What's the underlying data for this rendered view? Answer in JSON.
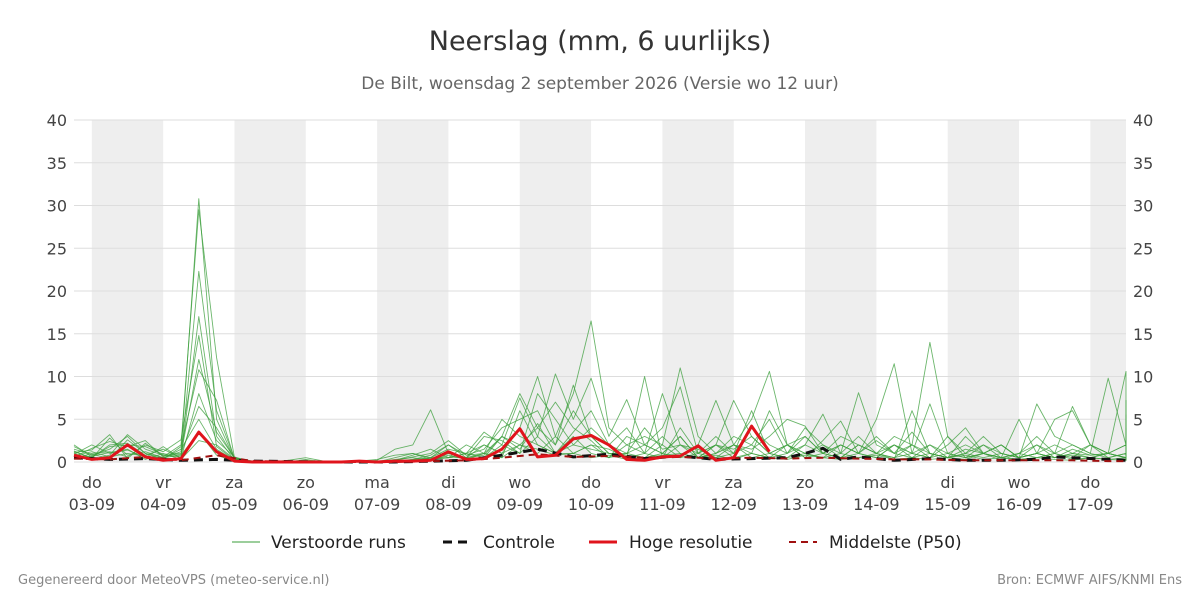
{
  "colors": {
    "ensemble": "#3a9e3a",
    "control": "#111111",
    "hires": "#e0141c",
    "median": "#a01010",
    "weekend_band": "#eeeeee",
    "grid": "#dddddd"
  },
  "chart_data": {
    "type": "line",
    "title": "Neerslag (mm, 6 uurlijks)",
    "subtitle": "De Bilt, woensdag  2 september 2026 (Versie wo 12 uur)",
    "unit": "mm",
    "xlim": [
      "2026-09-02T18:00",
      "2026-09-17T12:00"
    ],
    "ylim": [
      0,
      40
    ],
    "yticks": [
      0,
      5,
      10,
      15,
      20,
      25,
      30,
      35,
      40
    ],
    "y_axis_left_and_right": true,
    "grid": "horizontal",
    "shaded_days": [
      "2026-09-03",
      "2026-09-05",
      "2026-09-07",
      "2026-09-09",
      "2026-09-11",
      "2026-09-13",
      "2026-09-15",
      "2026-09-17"
    ],
    "xticks": [
      {
        "date": "2026-09-03",
        "day": "do",
        "label": "03-09"
      },
      {
        "date": "2026-09-04",
        "day": "vr",
        "label": "04-09"
      },
      {
        "date": "2026-09-05",
        "day": "za",
        "label": "05-09"
      },
      {
        "date": "2026-09-06",
        "day": "zo",
        "label": "06-09"
      },
      {
        "date": "2026-09-07",
        "day": "ma",
        "label": "07-09"
      },
      {
        "date": "2026-09-08",
        "day": "di",
        "label": "08-09"
      },
      {
        "date": "2026-09-09",
        "day": "wo",
        "label": "09-09"
      },
      {
        "date": "2026-09-10",
        "day": "do",
        "label": "10-09"
      },
      {
        "date": "2026-09-11",
        "day": "vr",
        "label": "11-09"
      },
      {
        "date": "2026-09-12",
        "day": "za",
        "label": "12-09"
      },
      {
        "date": "2026-09-13",
        "day": "zo",
        "label": "13-09"
      },
      {
        "date": "2026-09-14",
        "day": "ma",
        "label": "14-09"
      },
      {
        "date": "2026-09-15",
        "day": "di",
        "label": "15-09"
      },
      {
        "date": "2026-09-16",
        "day": "wo",
        "label": "16-09"
      },
      {
        "date": "2026-09-17",
        "day": "do",
        "label": "17-09"
      }
    ],
    "legend_position": "bottom-center",
    "series": [
      {
        "name": "Hoge resolutie",
        "style": "solid-thick",
        "x": [
          "2026-09-02T18:00",
          "2026-09-03T00:00",
          "2026-09-03T06:00",
          "2026-09-03T12:00",
          "2026-09-03T18:00",
          "2026-09-04T00:00",
          "2026-09-04T06:00",
          "2026-09-04T12:00",
          "2026-09-04T18:00",
          "2026-09-05T00:00",
          "2026-09-05T06:00",
          "2026-09-05T12:00",
          "2026-09-05T18:00",
          "2026-09-06T00:00",
          "2026-09-06T06:00",
          "2026-09-06T12:00",
          "2026-09-06T18:00",
          "2026-09-07T00:00",
          "2026-09-07T06:00",
          "2026-09-07T12:00",
          "2026-09-07T18:00",
          "2026-09-08T00:00",
          "2026-09-08T06:00",
          "2026-09-08T12:00",
          "2026-09-08T18:00",
          "2026-09-09T00:00",
          "2026-09-09T06:00",
          "2026-09-09T12:00",
          "2026-09-09T18:00",
          "2026-09-10T00:00",
          "2026-09-10T06:00",
          "2026-09-10T12:00",
          "2026-09-10T18:00",
          "2026-09-11T00:00",
          "2026-09-11T06:00",
          "2026-09-11T12:00",
          "2026-09-11T18:00",
          "2026-09-12T00:00",
          "2026-09-12T06:00",
          "2026-09-12T12:00"
        ],
        "values": [
          0.8,
          0.3,
          0.5,
          2.0,
          0.6,
          0.2,
          0.4,
          3.5,
          1.2,
          0.1,
          0.0,
          0.0,
          0.0,
          0.0,
          0.0,
          0.0,
          0.1,
          0.0,
          0.1,
          0.1,
          0.2,
          1.2,
          0.3,
          0.4,
          1.5,
          3.9,
          0.6,
          0.8,
          2.7,
          3.1,
          2.0,
          0.3,
          0.2,
          0.6,
          0.7,
          1.9,
          0.2,
          0.5,
          4.2,
          1.2
        ]
      },
      {
        "name": "Controle",
        "style": "dashed-thick",
        "x": [
          "2026-09-02T18:00",
          "2026-09-03T06:00",
          "2026-09-03T18:00",
          "2026-09-04T06:00",
          "2026-09-04T18:00",
          "2026-09-05T06:00",
          "2026-09-06T06:00",
          "2026-09-07T06:00",
          "2026-09-08T06:00",
          "2026-09-08T18:00",
          "2026-09-09T06:00",
          "2026-09-09T18:00",
          "2026-09-10T06:00",
          "2026-09-10T18:00",
          "2026-09-11T06:00",
          "2026-09-11T18:00",
          "2026-09-12T06:00",
          "2026-09-12T18:00",
          "2026-09-13T00:00",
          "2026-09-13T06:00",
          "2026-09-13T12:00",
          "2026-09-13T18:00",
          "2026-09-14T06:00",
          "2026-09-14T18:00",
          "2026-09-15T06:00",
          "2026-09-15T18:00",
          "2026-09-16T06:00",
          "2026-09-16T12:00",
          "2026-09-16T18:00",
          "2026-09-17T06:00",
          "2026-09-17T12:00"
        ],
        "values": [
          0.5,
          0.3,
          0.4,
          0.2,
          0.3,
          0.1,
          0.0,
          0.0,
          0.2,
          0.8,
          1.5,
          0.6,
          0.9,
          0.4,
          0.7,
          0.3,
          0.4,
          0.5,
          1.0,
          1.6,
          0.3,
          0.6,
          0.2,
          0.4,
          0.2,
          0.2,
          0.3,
          0.6,
          0.5,
          0.3,
          0.2
        ]
      },
      {
        "name": "Middelste (P50)",
        "style": "dashed",
        "x": [
          "2026-09-02T18:00",
          "2026-09-03T06:00",
          "2026-09-03T18:00",
          "2026-09-04T06:00",
          "2026-09-04T18:00",
          "2026-09-05T06:00",
          "2026-09-06T06:00",
          "2026-09-07T06:00",
          "2026-09-08T06:00",
          "2026-09-08T18:00",
          "2026-09-09T06:00",
          "2026-09-09T18:00",
          "2026-09-10T06:00",
          "2026-09-10T18:00",
          "2026-09-11T06:00",
          "2026-09-11T18:00",
          "2026-09-12T06:00",
          "2026-09-12T18:00",
          "2026-09-13T06:00",
          "2026-09-13T18:00",
          "2026-09-14T06:00",
          "2026-09-14T18:00",
          "2026-09-15T06:00",
          "2026-09-15T18:00",
          "2026-09-16T06:00",
          "2026-09-16T18:00",
          "2026-09-17T06:00",
          "2026-09-17T12:00"
        ],
        "values": [
          0.4,
          0.3,
          0.6,
          0.2,
          0.8,
          0.1,
          0.0,
          0.0,
          0.2,
          0.5,
          0.9,
          0.6,
          0.7,
          0.5,
          0.6,
          0.4,
          0.5,
          0.4,
          0.5,
          0.4,
          0.3,
          0.3,
          0.2,
          0.2,
          0.2,
          0.2,
          0.1,
          0.1
        ]
      }
    ],
    "ensemble": {
      "name": "Verstoorde runs",
      "x_start": "2026-09-02T18:00",
      "x_step_hours": 6,
      "members": [
        [
          1.8,
          0.8,
          1.5,
          3.0,
          1.0,
          0.5,
          1.2,
          30.8,
          5.0,
          0.3,
          0.1,
          0.0,
          0.2,
          0.5,
          0.1,
          0.0,
          0.1,
          0.3,
          0.8,
          1.0,
          0.5,
          2.0,
          0.8,
          1.0,
          3.0,
          8.0,
          4.0,
          2.0,
          6.0,
          3.0,
          1.0,
          0.8,
          0.5,
          2.0,
          11.0,
          3.0,
          1.0,
          2.0,
          5.0,
          10.6,
          2.0,
          0.5,
          1.0,
          3.0,
          2.0,
          1.0,
          3.0,
          2.0,
          14.0,
          3.0,
          0.5,
          1.0,
          2.0,
          0.5,
          1.0,
          5.0,
          6.0,
          2.0,
          1.0,
          10.6,
          8.0,
          1.0,
          0.5,
          10.0
        ],
        [
          1.2,
          0.5,
          2.0,
          2.2,
          0.8,
          1.5,
          0.5,
          17.0,
          3.0,
          0.2,
          0.0,
          0.1,
          0.0,
          0.1,
          0.0,
          0.0,
          0.0,
          0.2,
          1.5,
          2.0,
          6.1,
          1.0,
          0.5,
          2.0,
          1.0,
          4.0,
          10.0,
          3.0,
          8.0,
          16.5,
          4.0,
          2.0,
          1.0,
          3.0,
          1.0,
          0.5,
          2.0,
          7.2,
          3.0,
          1.0,
          0.5,
          2.0,
          5.6,
          1.0,
          8.1,
          2.0,
          1.0,
          0.5,
          2.0,
          1.0,
          0.5,
          1.0,
          2.0,
          0.5,
          6.8,
          3.0,
          2.0,
          1.0,
          9.8,
          2.0,
          1.0,
          3.0,
          7.2,
          1.0
        ],
        [
          0.6,
          1.6,
          2.4,
          1.8,
          2.5,
          0.6,
          2.0,
          29.5,
          12.2,
          0.5,
          0.1,
          0.0,
          0.0,
          0.2,
          0.0,
          0.0,
          0.0,
          0.1,
          0.2,
          0.8,
          1.5,
          0.5,
          1.0,
          3.5,
          2.0,
          7.5,
          3.0,
          10.3,
          5.0,
          9.8,
          3.0,
          7.3,
          2.0,
          4.0,
          8.8,
          1.0,
          0.5,
          2.0,
          1.5,
          3.0,
          5.0,
          4.2,
          1.0,
          0.5,
          2.0,
          1.0,
          0.3,
          6.0,
          1.0,
          0.5,
          3.0,
          1.0,
          0.2,
          1.0,
          3.0,
          1.0,
          6.5,
          2.0,
          1.0,
          0.5,
          2.4,
          0.8,
          0.5,
          1.0
        ],
        [
          1.0,
          0.3,
          0.8,
          3.2,
          1.5,
          0.8,
          0.6,
          22.3,
          6.0,
          0.4,
          0.0,
          0.0,
          0.1,
          0.0,
          0.0,
          0.1,
          0.0,
          0.0,
          0.3,
          0.5,
          0.2,
          1.0,
          0.3,
          1.0,
          0.5,
          6.0,
          2.0,
          1.0,
          1.0,
          2.0,
          1.5,
          0.5,
          10.0,
          0.5,
          4.0,
          1.0,
          2.0,
          1.0,
          6.0,
          1.0,
          2.0,
          0.5,
          2.5,
          4.8,
          1.0,
          5.0,
          11.5,
          1.0,
          0.5,
          2.0,
          4.0,
          1.0,
          0.5,
          5.0,
          1.0,
          0.5,
          1.0,
          2.0,
          0.5,
          1.0,
          2.0,
          0.5,
          5.5,
          2.0
        ],
        [
          0.4,
          1.0,
          1.2,
          0.6,
          2.0,
          1.2,
          2.6,
          14.8,
          1.8,
          0.2,
          0.0,
          0.0,
          0.0,
          0.1,
          0.0,
          0.0,
          0.0,
          0.0,
          0.1,
          0.3,
          0.8,
          2.0,
          0.5,
          3.0,
          2.5,
          1.0,
          8.0,
          5.0,
          2.0,
          4.0,
          2.0,
          4.0,
          1.0,
          8.0,
          2.0,
          1.5,
          0.5,
          1.0,
          2.0,
          5.0,
          1.0,
          3.0,
          1.0,
          2.0,
          1.0,
          0.5,
          2.0,
          1.0,
          6.8,
          1.0,
          0.5,
          2.0,
          0.5,
          1.0,
          2.0,
          0.5,
          1.0,
          0.8,
          1.0,
          0.5,
          1.0,
          0.5,
          1.0,
          4.0
        ],
        [
          1.5,
          0.9,
          0.4,
          2.6,
          1.0,
          0.3,
          1.8,
          10.8,
          7.2,
          0.3,
          0.0,
          0.0,
          0.0,
          0.0,
          0.0,
          0.0,
          0.0,
          0.1,
          0.0,
          0.2,
          0.5,
          1.5,
          1.0,
          0.5,
          3.0,
          2.0,
          4.0,
          7.0,
          4.0,
          2.5,
          0.5,
          2.0,
          3.0,
          2.0,
          0.5,
          2.0,
          7.2,
          2.0,
          1.0,
          6.0,
          2.0,
          1.0,
          0.5,
          2.0,
          1.0,
          3.0,
          1.0,
          2.0,
          1.0,
          0.5,
          1.0,
          3.0,
          1.0,
          0.5,
          1.0,
          2.0,
          1.0,
          0.5,
          1.0,
          2.0,
          1.0,
          0.5,
          1.0,
          0.5
        ],
        [
          0.9,
          2.0,
          1.0,
          1.4,
          0.5,
          1.8,
          0.4,
          8.0,
          2.5,
          0.6,
          0.0,
          0.0,
          0.2,
          0.0,
          0.1,
          0.0,
          0.0,
          0.0,
          0.5,
          1.0,
          0.3,
          0.5,
          2.0,
          1.0,
          5.0,
          3.0,
          2.0,
          1.0,
          3.0,
          1.0,
          0.5,
          3.0,
          2.0,
          1.0,
          3.0,
          0.5,
          1.0,
          3.0,
          2.0,
          0.5,
          1.0,
          2.0,
          1.0,
          0.5,
          2.0,
          1.0,
          0.5,
          2.0,
          0.5,
          1.0,
          2.0,
          1.0,
          0.5,
          1.0,
          0.5,
          1.0,
          2.0,
          1.0,
          0.5,
          1.0,
          0.5,
          1.0,
          0.3,
          0.5
        ],
        [
          2.0,
          0.6,
          1.8,
          2.0,
          1.8,
          0.9,
          1.0,
          6.5,
          4.0,
          0.4,
          0.1,
          0.0,
          0.0,
          0.3,
          0.0,
          0.0,
          0.0,
          0.0,
          0.2,
          0.6,
          1.0,
          2.5,
          0.8,
          1.5,
          4.0,
          5.0,
          6.0,
          2.0,
          9.0,
          3.0,
          1.0,
          1.0,
          4.0,
          1.5,
          2.0,
          1.0,
          3.0,
          1.0,
          4.0,
          2.0,
          1.0,
          4.0,
          2.0,
          1.0,
          3.0,
          1.0,
          2.0,
          1.0,
          0.5,
          3.0,
          1.0,
          2.0,
          1.0,
          0.5,
          2.0,
          1.0,
          0.5,
          2.0,
          1.0,
          0.5,
          1.0,
          2.0,
          0.5,
          1.0
        ],
        [
          0.7,
          1.2,
          0.6,
          1.0,
          0.7,
          0.4,
          1.5,
          5.0,
          1.5,
          0.2,
          0.0,
          0.0,
          0.0,
          0.0,
          0.0,
          0.0,
          0.0,
          0.0,
          0.0,
          0.3,
          0.5,
          0.5,
          1.0,
          2.0,
          1.0,
          2.0,
          1.0,
          3.0,
          1.0,
          2.0,
          0.5,
          1.0,
          0.5,
          1.0,
          0.5,
          1.0,
          2.0,
          0.5,
          1.0,
          0.5,
          2.0,
          1.0,
          0.5,
          1.0,
          0.5,
          1.0,
          0.5,
          1.0,
          2.0,
          0.5,
          1.0,
          0.5,
          1.0,
          0.5,
          1.0,
          0.5,
          0.8,
          0.5,
          1.0,
          0.5,
          0.3,
          0.5,
          1.0,
          0.5
        ],
        [
          1.3,
          0.4,
          2.8,
          0.8,
          1.2,
          0.5,
          0.8,
          3.5,
          0.8,
          0.1,
          0.0,
          0.0,
          0.0,
          0.0,
          0.0,
          0.0,
          0.0,
          0.0,
          0.1,
          0.0,
          0.2,
          0.8,
          0.3,
          0.5,
          2.0,
          1.0,
          3.0,
          1.0,
          2.0,
          1.5,
          1.0,
          0.5,
          1.0,
          0.5,
          2.0,
          0.5,
          1.0,
          2.0,
          0.5,
          1.0,
          0.5,
          1.0,
          2.0,
          0.5,
          1.0,
          0.5,
          2.0,
          0.5,
          1.0,
          0.5,
          0.3,
          1.0,
          0.5,
          0.3,
          0.5,
          1.0,
          0.3,
          0.5,
          0.3,
          0.5,
          0.3,
          0.2,
          0.5,
          0.3
        ],
        [
          0.5,
          0.7,
          1.1,
          1.5,
          0.3,
          1.0,
          0.3,
          2.5,
          2.0,
          0.3,
          0.0,
          0.0,
          0.0,
          0.0,
          0.0,
          0.0,
          0.0,
          0.0,
          0.0,
          0.1,
          0.3,
          0.5,
          0.5,
          1.0,
          0.5,
          2.0,
          1.5,
          0.8,
          1.0,
          0.5,
          0.8,
          0.3,
          0.5,
          0.8,
          1.0,
          0.5,
          0.8,
          0.3,
          1.0,
          0.5,
          0.3,
          0.8,
          0.5,
          0.3,
          0.5,
          0.8,
          0.3,
          0.5,
          0.3,
          0.5,
          0.8,
          0.3,
          0.5,
          0.3,
          0.5,
          0.3,
          0.2,
          0.5,
          0.3,
          0.2,
          0.3,
          0.5,
          0.2,
          0.3
        ],
        [
          1.1,
          1.4,
          3.2,
          0.4,
          2.2,
          0.7,
          0.9,
          12.0,
          3.5,
          0.5,
          0.0,
          0.0,
          0.0,
          0.0,
          0.0,
          0.0,
          0.0,
          0.0,
          0.0,
          0.2,
          0.4,
          1.0,
          0.5,
          0.8,
          3.0,
          1.5,
          4.5,
          1.0,
          3.5,
          6.0,
          2.0,
          1.0,
          2.0,
          1.0,
          3.0,
          0.5,
          2.0,
          1.5,
          3.0,
          1.0,
          2.0,
          3.0,
          1.0,
          2.0,
          1.0,
          2.5,
          1.0,
          3.5,
          1.0,
          0.5,
          1.5,
          1.0,
          2.0,
          0.5,
          1.0,
          0.5,
          1.5,
          0.8,
          1.0,
          2.0,
          0.5,
          1.0,
          0.5,
          2.0
        ]
      ]
    }
  },
  "legend": {
    "ensemble": "Verstoorde runs",
    "control": "Controle",
    "hires": "Hoge resolutie",
    "median": "Middelste (P50)"
  },
  "footer": {
    "left": "Gegenereerd door MeteoVPS (meteo-service.nl)",
    "right": "Bron: ECMWF AIFS/KNMI Ens"
  }
}
